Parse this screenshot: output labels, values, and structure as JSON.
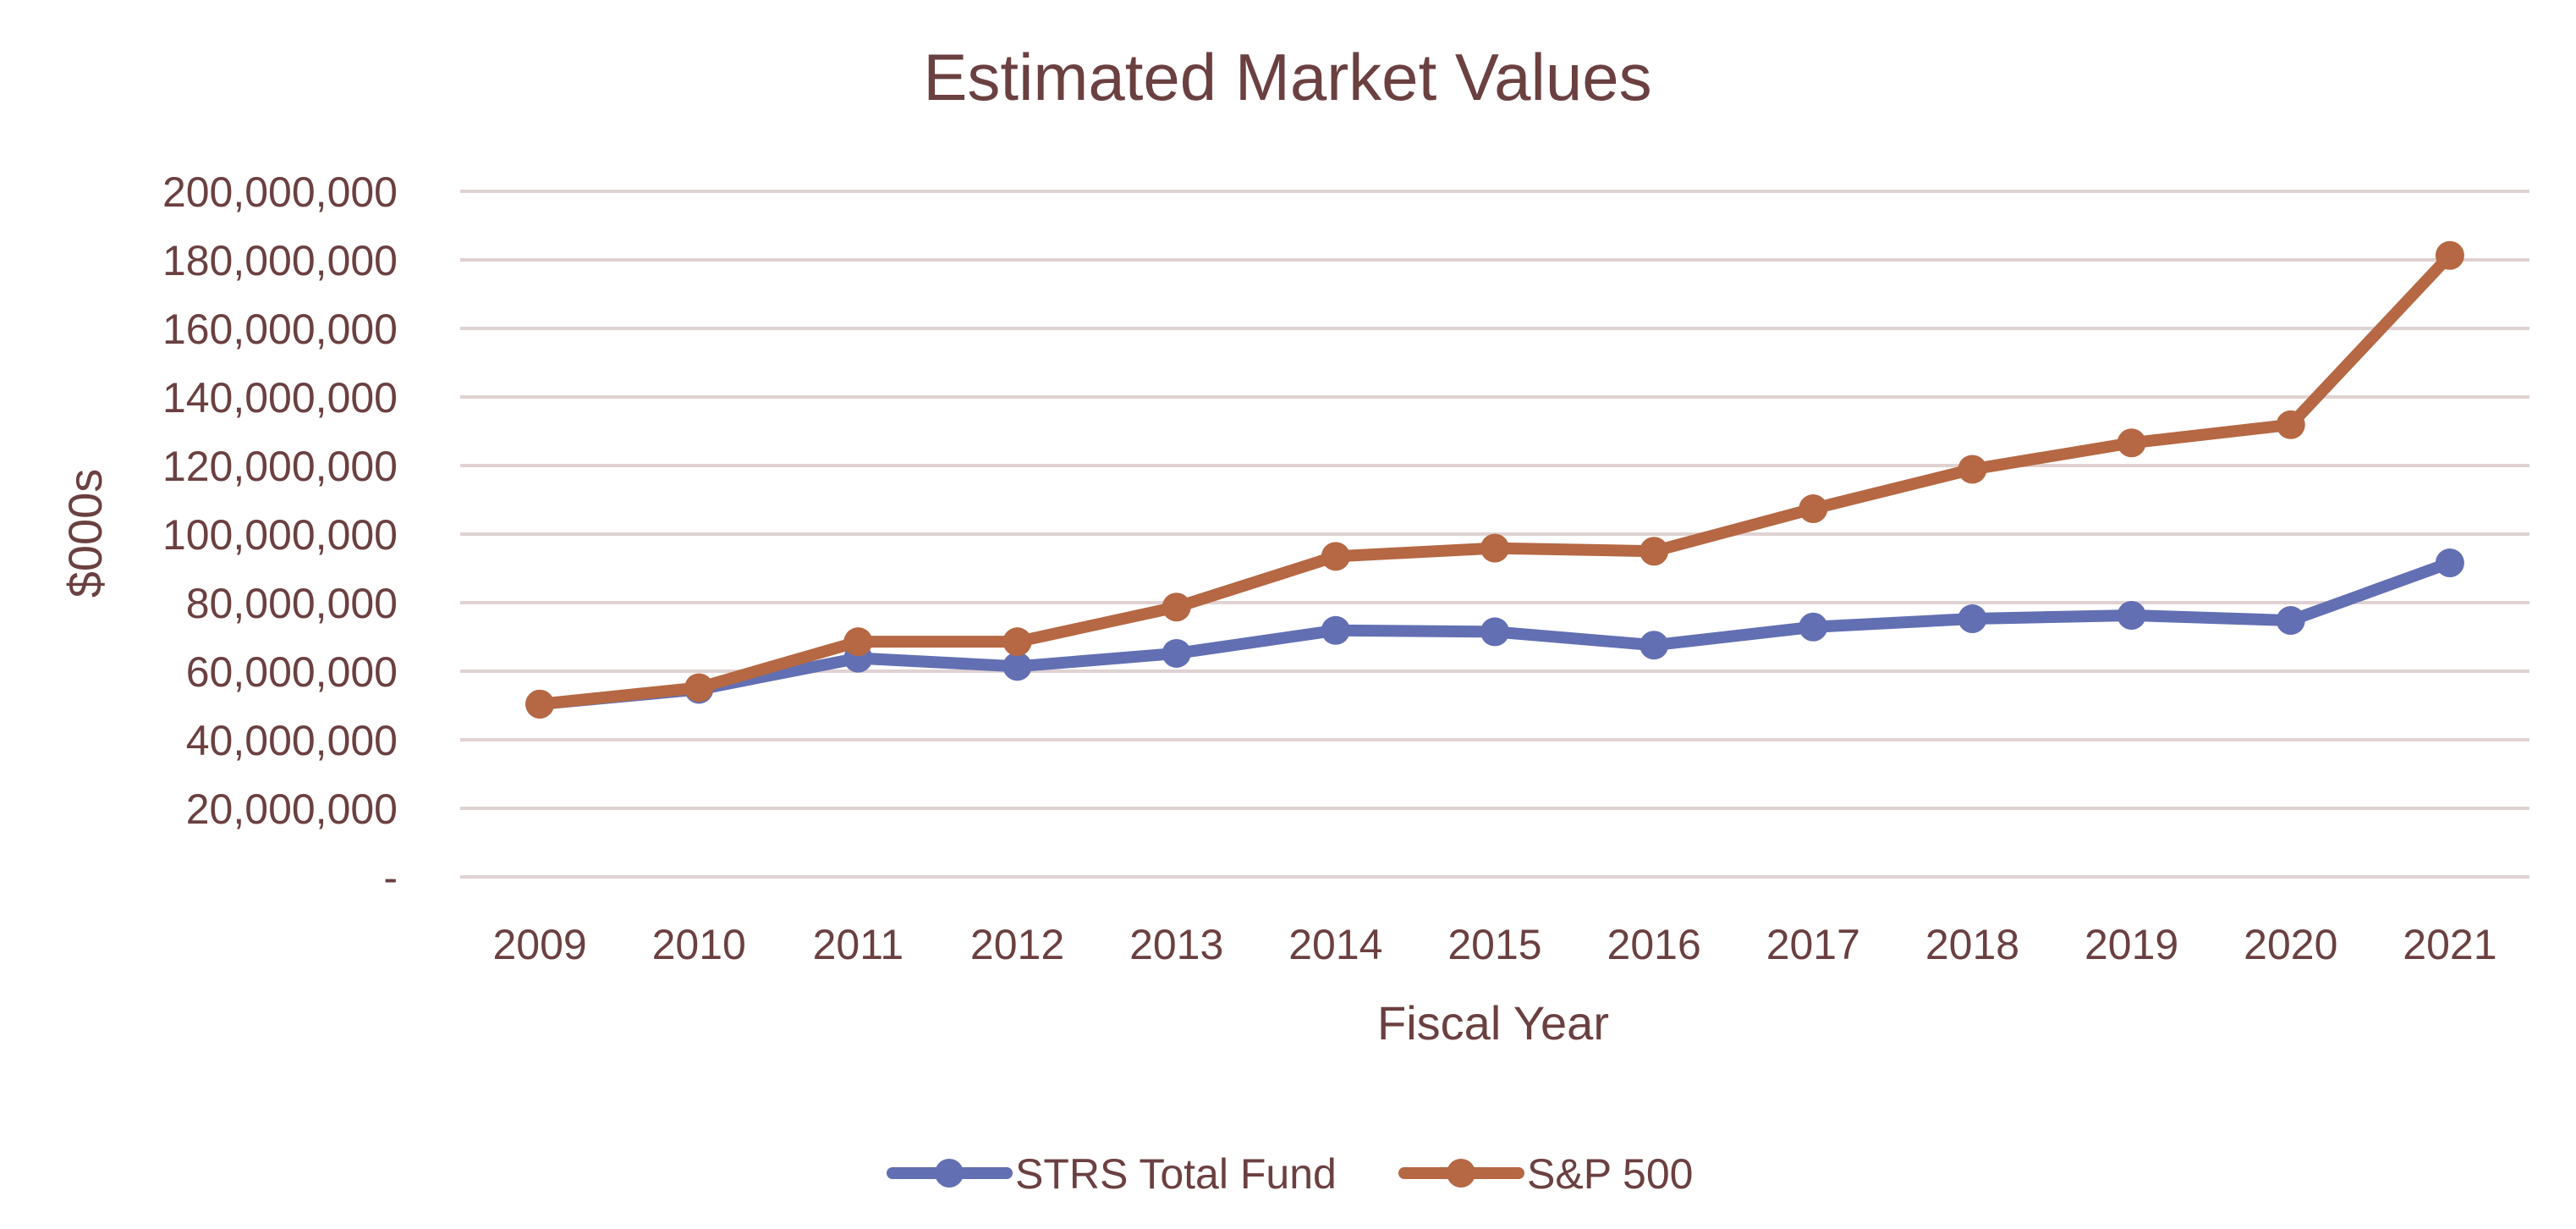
{
  "chart_data": {
    "type": "line",
    "title": "Estimated Market Values",
    "xlabel": "Fiscal Year",
    "ylabel": "$000s",
    "categories": [
      "2009",
      "2010",
      "2011",
      "2012",
      "2013",
      "2014",
      "2015",
      "2016",
      "2017",
      "2018",
      "2019",
      "2020",
      "2021"
    ],
    "ylim": [
      0,
      200000000
    ],
    "yticks": [
      0,
      20000000,
      40000000,
      60000000,
      80000000,
      100000000,
      120000000,
      140000000,
      160000000,
      180000000,
      200000000
    ],
    "ytick_labels": [
      "-",
      "20,000,000",
      "40,000,000",
      "60,000,000",
      "80,000,000",
      "100,000,000",
      "120,000,000",
      "140,000,000",
      "160,000,000",
      "180,000,000",
      "200,000,000"
    ],
    "grid": true,
    "legend": "bottom",
    "series": [
      {
        "name": "STRS Total Fund",
        "color": "#636fb3",
        "values": [
          50400000,
          54700000,
          63800000,
          61400000,
          65200000,
          71900000,
          71500000,
          67600000,
          72900000,
          75300000,
          76300000,
          74800000,
          91600000
        ]
      },
      {
        "name": "S&P 500",
        "color": "#b56843",
        "values": [
          50400000,
          55200000,
          68600000,
          68600000,
          78700000,
          93500000,
          95900000,
          95000000,
          107400000,
          118900000,
          126600000,
          131900000,
          181300000
        ]
      }
    ]
  }
}
